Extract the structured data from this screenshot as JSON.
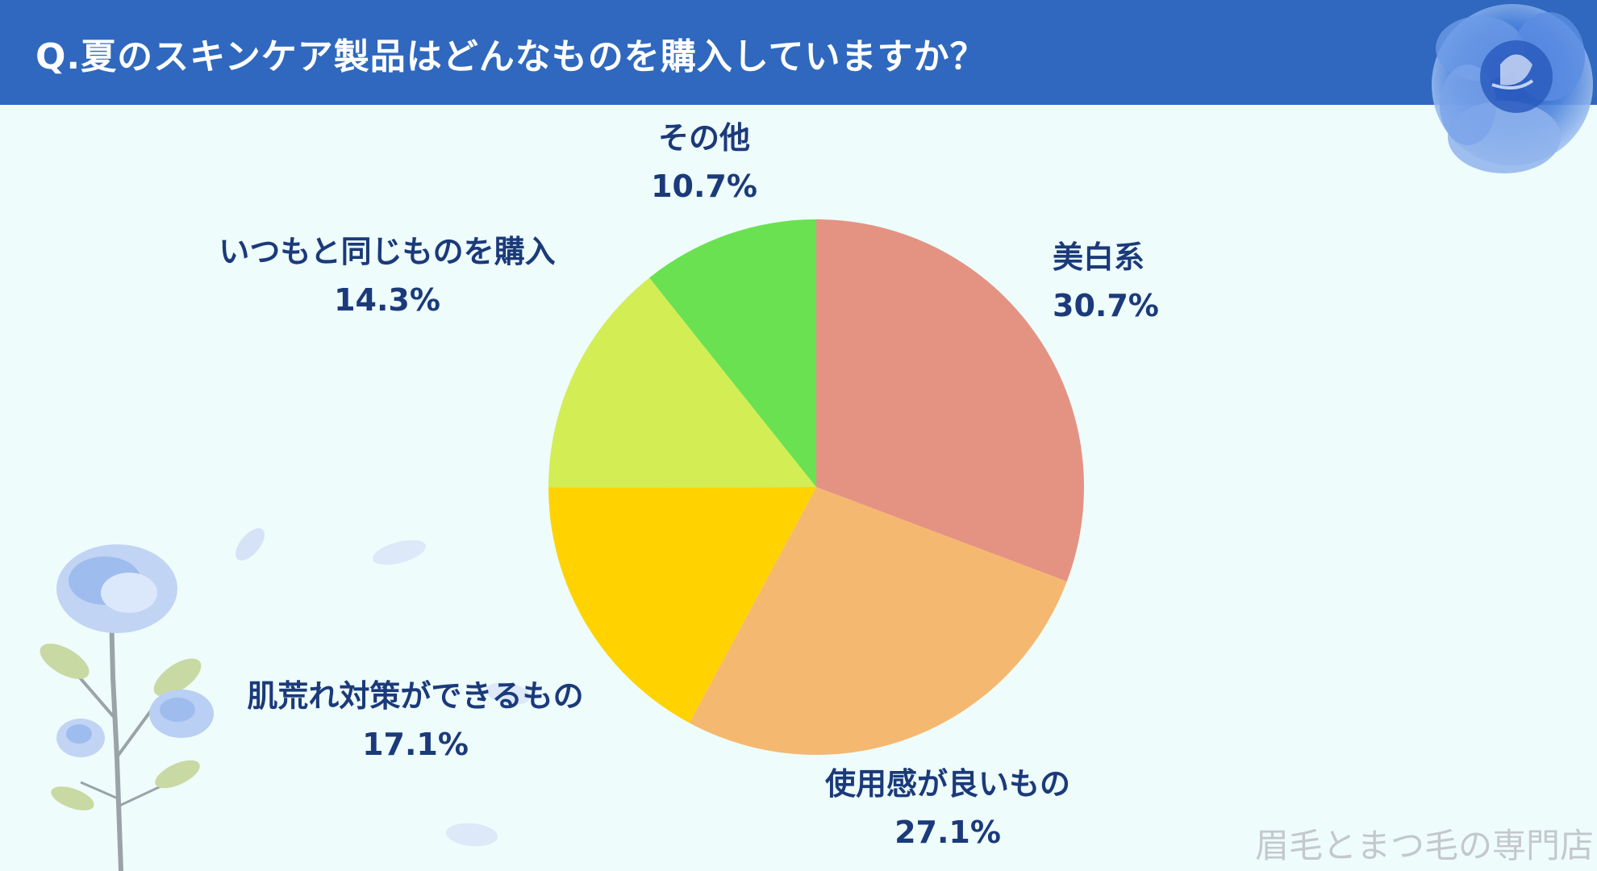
{
  "header": {
    "title": "Q.夏のスキンケア製品はどんなものを購入していますか？"
  },
  "chart_data": {
    "type": "pie",
    "slices": [
      {
        "label": "美白系",
        "value": 30.7,
        "value_label": "30.7%",
        "color": "#e49383"
      },
      {
        "label": "使用感が良いもの",
        "value": 27.1,
        "value_label": "27.1%",
        "color": "#f5b870"
      },
      {
        "label": "肌荒れ対策ができるもの",
        "value": 17.1,
        "value_label": "17.1%",
        "color": "#ffd200"
      },
      {
        "label": "いつもと同じものを購入",
        "value": 14.3,
        "value_label": "14.3%",
        "color": "#d3ed55"
      },
      {
        "label": "その他",
        "value": 10.7,
        "value_label": "10.7%",
        "color": "#69e151"
      }
    ],
    "start": "12 o'clock",
    "direction": "clockwise"
  },
  "watermark": "眉毛とまつ毛の専門店",
  "colors": {
    "header_bg": "#2f68be",
    "page_bg": "#eefcfc",
    "label_text": "#1b3a7a",
    "decoration": "#8fb0e8"
  },
  "decorations": {
    "top_right": "blue-rose",
    "bottom_left": "blue-rose-plant"
  }
}
